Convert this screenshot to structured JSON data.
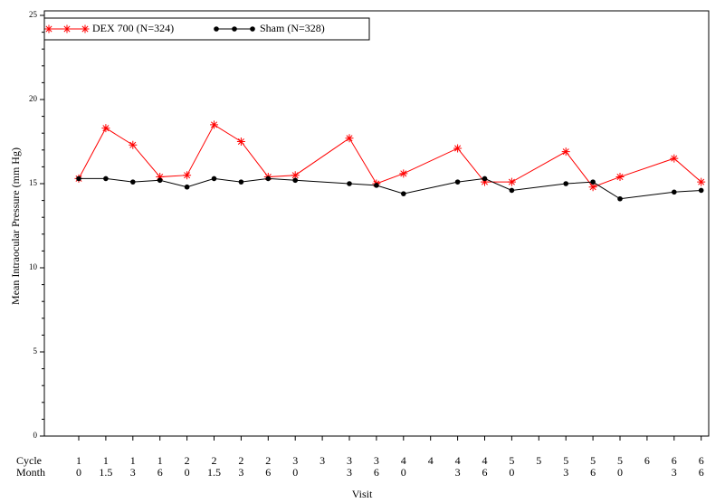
{
  "chart_data": {
    "type": "line",
    "y_label": "Mean Intraocular Pressure (mm Hg)",
    "x_label": "Visit",
    "row_labels": [
      "Cycle",
      "Month"
    ],
    "cycles": [
      "1",
      "1",
      "1",
      "1",
      "2",
      "2",
      "2",
      "2",
      "3",
      "3",
      "3",
      "4",
      "4",
      "4",
      "5",
      "5",
      "5",
      "5",
      "6",
      "6"
    ],
    "months": [
      "0",
      "1.5",
      "3",
      "6",
      "0",
      "1.5",
      "3",
      "6",
      "0",
      "3",
      "6",
      "0",
      "3",
      "6",
      "0",
      "3",
      "6",
      "0",
      "3",
      "6"
    ],
    "intermediate_cycles": [
      "3",
      "4",
      "5",
      "6"
    ],
    "series": [
      {
        "name": "DEX 700 (N=324)",
        "color": "#ff0000",
        "marker": "star",
        "values": [
          15.3,
          18.3,
          17.3,
          15.4,
          15.5,
          18.5,
          17.5,
          15.4,
          15.5,
          17.7,
          15.0,
          15.6,
          17.1,
          15.1,
          15.1,
          16.9,
          14.8,
          15.4,
          16.5,
          15.1
        ]
      },
      {
        "name": "Sham (N=328)",
        "color": "#000000",
        "marker": "circle",
        "values": [
          15.3,
          15.3,
          15.1,
          15.2,
          14.8,
          15.3,
          15.1,
          15.3,
          15.2,
          15.0,
          14.9,
          14.4,
          15.1,
          15.3,
          14.6,
          15.0,
          15.1,
          14.1,
          14.5,
          14.6
        ]
      }
    ],
    "ylim": [
      0,
      25
    ],
    "yticks": [
      0,
      5,
      10,
      15,
      20,
      25
    ],
    "legend": "top-left"
  }
}
